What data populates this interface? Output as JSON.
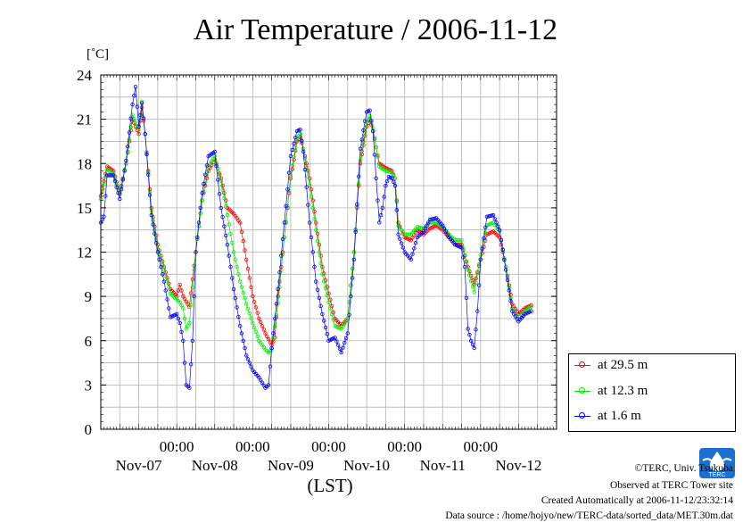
{
  "title": "Air Temperature / 2006-11-12",
  "chart_data": {
    "type": "line",
    "title": "Air Temperature / 2006-11-12",
    "ylabel": "[˚C]",
    "xlabel": "(LST)",
    "ylim": [
      0,
      24
    ],
    "yticks": [
      "0",
      "3",
      "6",
      "9",
      "12",
      "15",
      "18",
      "21",
      "24"
    ],
    "xlim_hours": [
      0,
      144
    ],
    "xticks": [
      "00:00",
      "00:00",
      "00:00",
      "00:00",
      "00:00"
    ],
    "day_labels": [
      "Nov-07",
      "Nov-08",
      "Nov-09",
      "Nov-10",
      "Nov-11",
      "Nov-12"
    ],
    "grid": true,
    "legend_position": "bottom-right-outside",
    "series": [
      {
        "name": "at 29.5 m",
        "color": "#ff0000",
        "points": [
          [
            0,
            15.8
          ],
          [
            2,
            17.8
          ],
          [
            4,
            17.5
          ],
          [
            6,
            16
          ],
          [
            8,
            18
          ],
          [
            10,
            21
          ],
          [
            12,
            20
          ],
          [
            13,
            21.8
          ],
          [
            14,
            20
          ],
          [
            16,
            15
          ],
          [
            18,
            12.5
          ],
          [
            20,
            11
          ],
          [
            22,
            9.5
          ],
          [
            24,
            9
          ],
          [
            25,
            9.8
          ],
          [
            26,
            9
          ],
          [
            28,
            8.3
          ],
          [
            30,
            12
          ],
          [
            32,
            15.5
          ],
          [
            34,
            17.5
          ],
          [
            36,
            18.3
          ],
          [
            38,
            17
          ],
          [
            40,
            15
          ],
          [
            42,
            14.6
          ],
          [
            44,
            14
          ],
          [
            46,
            11.5
          ],
          [
            48,
            9
          ],
          [
            50,
            7.5
          ],
          [
            52,
            6.5
          ],
          [
            54,
            5.7
          ],
          [
            55,
            6.2
          ],
          [
            56,
            9
          ],
          [
            58,
            13
          ],
          [
            60,
            17
          ],
          [
            62,
            19.5
          ],
          [
            63,
            19.8
          ],
          [
            64,
            19
          ],
          [
            66,
            17
          ],
          [
            68,
            14
          ],
          [
            70,
            11
          ],
          [
            72,
            9.2
          ],
          [
            74,
            7.5
          ],
          [
            76,
            7
          ],
          [
            78,
            7.5
          ],
          [
            80,
            12
          ],
          [
            82,
            18
          ],
          [
            84,
            20.5
          ],
          [
            85,
            21
          ],
          [
            86,
            20.2
          ],
          [
            88,
            18
          ],
          [
            90,
            17.7
          ],
          [
            92,
            17.5
          ],
          [
            93,
            17
          ],
          [
            94,
            14
          ],
          [
            96,
            13
          ],
          [
            98,
            12.8
          ],
          [
            100,
            13.5
          ],
          [
            102,
            13.2
          ],
          [
            104,
            13.6
          ],
          [
            106,
            13.8
          ],
          [
            108,
            13.5
          ],
          [
            110,
            13
          ],
          [
            112,
            12.5
          ],
          [
            114,
            12.5
          ],
          [
            116,
            11
          ],
          [
            118,
            9.8
          ],
          [
            120,
            11.5
          ],
          [
            122,
            13.2
          ],
          [
            124,
            13.4
          ],
          [
            126,
            13
          ],
          [
            128,
            11
          ],
          [
            130,
            8.5
          ],
          [
            132,
            7.8
          ],
          [
            134,
            8.2
          ],
          [
            136,
            8.4
          ]
        ]
      },
      {
        "name": "at 12.3 m",
        "color": "#00ee00",
        "points": [
          [
            0,
            15.6
          ],
          [
            2,
            17.6
          ],
          [
            4,
            17.3
          ],
          [
            6,
            15.9
          ],
          [
            8,
            18
          ],
          [
            10,
            21.3
          ],
          [
            12,
            20.3
          ],
          [
            13,
            22.2
          ],
          [
            14,
            20
          ],
          [
            16,
            14.8
          ],
          [
            18,
            12.2
          ],
          [
            20,
            10.8
          ],
          [
            22,
            9.2
          ],
          [
            24,
            8.8
          ],
          [
            25,
            8.6
          ],
          [
            26,
            8.2
          ],
          [
            27,
            6.8
          ],
          [
            28,
            7.2
          ],
          [
            30,
            12
          ],
          [
            32,
            15.5
          ],
          [
            34,
            17.8
          ],
          [
            36,
            18.5
          ],
          [
            38,
            16.8
          ],
          [
            40,
            14.5
          ],
          [
            42,
            12
          ],
          [
            44,
            10
          ],
          [
            46,
            8.5
          ],
          [
            48,
            7.2
          ],
          [
            50,
            6
          ],
          [
            52,
            5.4
          ],
          [
            53,
            5.2
          ],
          [
            54,
            5.4
          ],
          [
            56,
            8.5
          ],
          [
            58,
            13
          ],
          [
            60,
            17.2
          ],
          [
            62,
            19.7
          ],
          [
            63,
            20
          ],
          [
            64,
            19
          ],
          [
            66,
            16.5
          ],
          [
            68,
            13.5
          ],
          [
            70,
            10.5
          ],
          [
            72,
            8.6
          ],
          [
            74,
            7
          ],
          [
            76,
            6.8
          ],
          [
            78,
            7.5
          ],
          [
            80,
            12
          ],
          [
            82,
            18.2
          ],
          [
            84,
            20.8
          ],
          [
            85,
            21.2
          ],
          [
            86,
            20.4
          ],
          [
            88,
            17.8
          ],
          [
            90,
            17.5
          ],
          [
            92,
            17.4
          ],
          [
            93,
            17
          ],
          [
            94,
            13.8
          ],
          [
            96,
            13.2
          ],
          [
            98,
            13.2
          ],
          [
            100,
            13.7
          ],
          [
            102,
            13.6
          ],
          [
            104,
            14
          ],
          [
            106,
            14
          ],
          [
            108,
            13.7
          ],
          [
            110,
            13.2
          ],
          [
            112,
            12.8
          ],
          [
            114,
            12.8
          ],
          [
            116,
            10.8
          ],
          [
            118,
            9.3
          ],
          [
            120,
            11.8
          ],
          [
            122,
            13.8
          ],
          [
            124,
            14
          ],
          [
            126,
            13.4
          ],
          [
            128,
            11
          ],
          [
            130,
            8.2
          ],
          [
            132,
            7.5
          ],
          [
            134,
            8
          ],
          [
            136,
            8.3
          ]
        ]
      },
      {
        "name": "at 1.6 m",
        "color": "#0000ff",
        "points": [
          [
            0,
            14
          ],
          [
            1,
            14.4
          ],
          [
            2,
            17.2
          ],
          [
            4,
            17.2
          ],
          [
            6,
            15.6
          ],
          [
            8,
            18.2
          ],
          [
            10,
            22
          ],
          [
            11,
            23.2
          ],
          [
            12,
            20.5
          ],
          [
            13,
            22.1
          ],
          [
            14,
            20
          ],
          [
            16,
            14.5
          ],
          [
            18,
            12
          ],
          [
            20,
            10
          ],
          [
            22,
            7.6
          ],
          [
            24,
            7.8
          ],
          [
            25,
            7.2
          ],
          [
            26,
            6
          ],
          [
            27,
            3
          ],
          [
            28,
            2.8
          ],
          [
            29,
            6
          ],
          [
            30,
            12
          ],
          [
            32,
            16
          ],
          [
            34,
            18.5
          ],
          [
            36,
            18.8
          ],
          [
            38,
            15
          ],
          [
            40,
            12.5
          ],
          [
            42,
            9.5
          ],
          [
            44,
            7
          ],
          [
            46,
            5
          ],
          [
            48,
            4
          ],
          [
            50,
            3.5
          ],
          [
            52,
            2.8
          ],
          [
            53,
            3
          ],
          [
            54,
            5.5
          ],
          [
            56,
            9.5
          ],
          [
            58,
            14
          ],
          [
            60,
            18.5
          ],
          [
            62,
            20.2
          ],
          [
            63,
            20.3
          ],
          [
            64,
            18.8
          ],
          [
            66,
            14
          ],
          [
            68,
            10
          ],
          [
            70,
            7.8
          ],
          [
            72,
            6
          ],
          [
            74,
            6.2
          ],
          [
            76,
            5.2
          ],
          [
            78,
            6.5
          ],
          [
            80,
            11.5
          ],
          [
            82,
            19
          ],
          [
            84,
            21.5
          ],
          [
            85,
            21.6
          ],
          [
            86,
            20.2
          ],
          [
            87,
            17
          ],
          [
            88,
            14
          ],
          [
            89,
            15
          ],
          [
            90,
            16.5
          ],
          [
            91,
            17.1
          ],
          [
            92,
            17
          ],
          [
            93,
            16.5
          ],
          [
            94,
            13.2
          ],
          [
            96,
            12
          ],
          [
            98,
            11.5
          ],
          [
            100,
            13
          ],
          [
            102,
            13.4
          ],
          [
            104,
            14.2
          ],
          [
            106,
            14.3
          ],
          [
            108,
            13.8
          ],
          [
            110,
            13
          ],
          [
            112,
            12.5
          ],
          [
            114,
            12.3
          ],
          [
            115,
            11
          ],
          [
            116,
            6.8
          ],
          [
            117,
            6
          ],
          [
            118,
            5.5
          ],
          [
            119,
            8
          ],
          [
            120,
            11.5
          ],
          [
            122,
            14.4
          ],
          [
            124,
            14.5
          ],
          [
            126,
            13.5
          ],
          [
            128,
            10.8
          ],
          [
            130,
            8
          ],
          [
            132,
            7.3
          ],
          [
            134,
            7.8
          ],
          [
            136,
            8
          ]
        ]
      }
    ]
  },
  "credits": {
    "copyright": "©TERC, Univ. Tsukuba",
    "site": "Observed at TERC Tower site",
    "created": "Created Automatically at 2006-11-12/23:32:14",
    "source": "Data source : /home/hojyo/new/TERC-data/sorted_data/MET.30m.dat"
  },
  "logo_text": "TERC"
}
